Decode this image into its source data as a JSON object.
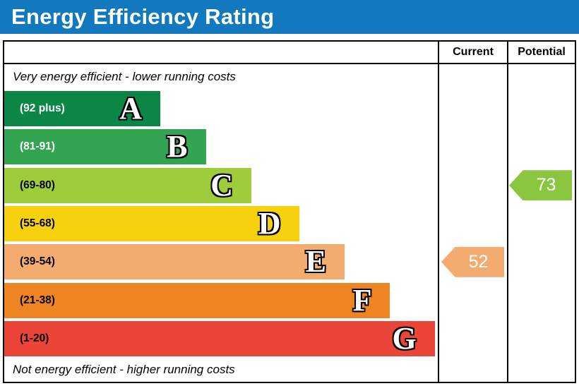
{
  "title": "Energy Efficiency Rating",
  "header_color": "#1279be",
  "columns": {
    "current": "Current",
    "potential": "Potential"
  },
  "notes": {
    "top": "Very energy efficient - lower running costs",
    "bottom": "Not energy efficient - higher running costs"
  },
  "chart_data": {
    "type": "bar",
    "subtype": "epc-energy-efficiency-rating",
    "bands": [
      {
        "letter": "A",
        "range": "(92 plus)",
        "color": "#0c8647",
        "label_color": "#ffffff",
        "width_pct": 36
      },
      {
        "letter": "B",
        "range": "(81-91)",
        "color": "#33a451",
        "label_color": "#ffffff",
        "width_pct": 46.5
      },
      {
        "letter": "C",
        "range": "(69-80)",
        "color": "#9fcc3b",
        "label_color": "#000000",
        "width_pct": 57
      },
      {
        "letter": "D",
        "range": "(55-68)",
        "color": "#f7d10d",
        "label_color": "#000000",
        "width_pct": 68
      },
      {
        "letter": "E",
        "range": "(39-54)",
        "color": "#f4ab6f",
        "label_color": "#000000",
        "width_pct": 78.5
      },
      {
        "letter": "F",
        "range": "(21-38)",
        "color": "#ef8423",
        "label_color": "#000000",
        "width_pct": 89
      },
      {
        "letter": "G",
        "range": "(1-20)",
        "color": "#eb4539",
        "label_color": "#000000",
        "width_pct": 99.3
      }
    ],
    "current": {
      "value": 52,
      "band": "E",
      "color": "#f4ab6f"
    },
    "potential": {
      "value": 73,
      "band": "C",
      "color": "#8bc63f"
    }
  }
}
